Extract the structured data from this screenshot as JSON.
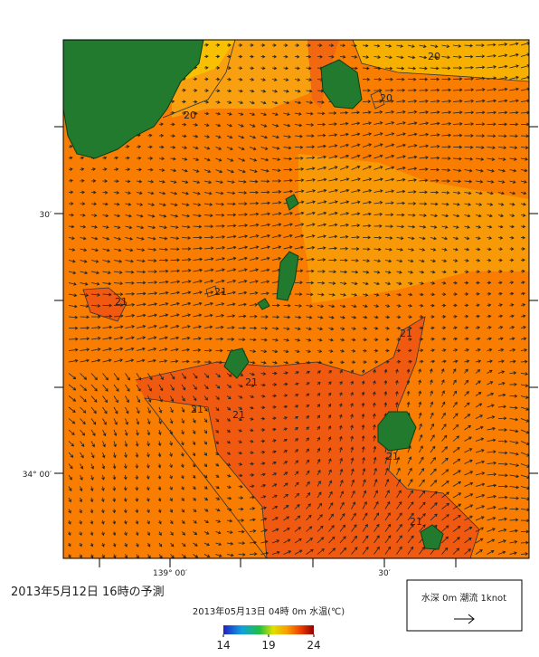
{
  "map": {
    "lat_labels": [
      "30′",
      "34° 00′"
    ],
    "lon_labels": [
      "139° 00′",
      "30′"
    ],
    "contour_labels": [
      "20",
      "20",
      "20",
      "21",
      "21",
      "21",
      "21",
      "21",
      "21",
      "21",
      "21"
    ]
  },
  "caption": {
    "title": "2013年5月12日  16時の予測"
  },
  "colorbar": {
    "title": "2013年05月13日 04時 0m 水温(℃)",
    "ticks": [
      14,
      19,
      24
    ],
    "lim": [
      14,
      24
    ]
  },
  "legend": {
    "text": "水深 0m 潮流 1knot"
  }
}
